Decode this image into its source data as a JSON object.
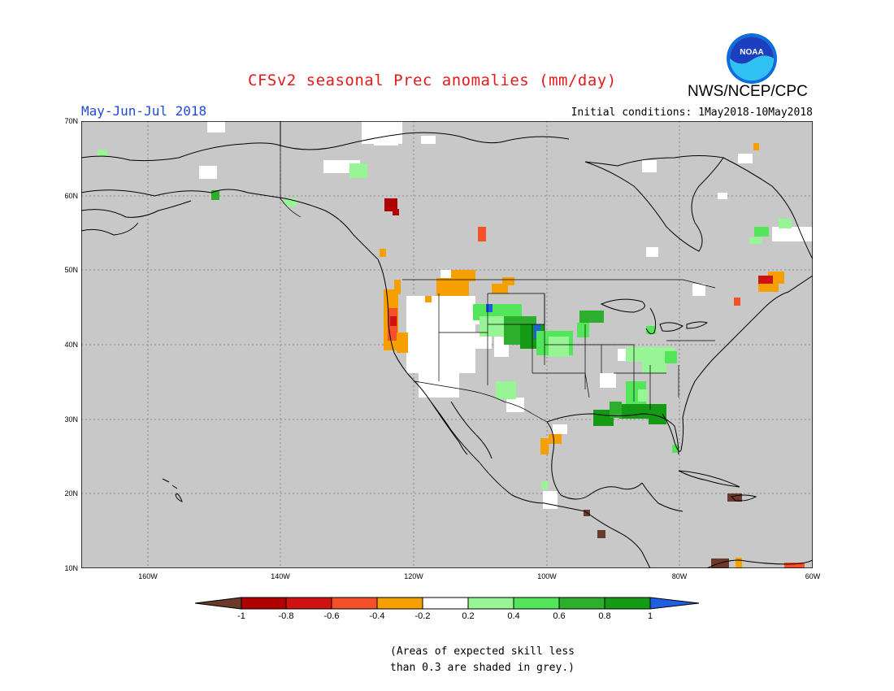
{
  "header": {
    "title": "CFSv2 seasonal Prec anomalies (mm/day)",
    "period": "May-Jun-Jul 2018",
    "initial_conditions": "Initial conditions: 1May2018-10May2018",
    "agency": "NWS/NCEP/CPC",
    "logo_text": "NOAA"
  },
  "map": {
    "region": "North America",
    "lon_range": [
      -170,
      -60
    ],
    "lat_range": [
      10,
      70
    ],
    "lat_labels": [
      "70N",
      "60N",
      "50N",
      "40N",
      "30N",
      "20N",
      "10N"
    ],
    "lon_labels": [
      "160W",
      "140W",
      "120W",
      "100W",
      "80W",
      "60W"
    ],
    "background_color": "#c8c8c8",
    "anomaly_cells": [
      {
        "lon": -124,
        "lat": 41,
        "value": -0.6
      },
      {
        "lon": -123.5,
        "lat": 42,
        "value": -0.6
      },
      {
        "lon": -124,
        "lat": 44,
        "value": -0.4
      },
      {
        "lon": -123,
        "lat": 40,
        "value": -0.4
      },
      {
        "lon": -113,
        "lat": 48,
        "value": -0.4
      },
      {
        "lon": -110,
        "lat": 48,
        "value": -0.4
      },
      {
        "lon": -109.5,
        "lat": 54.5,
        "value": -0.6
      },
      {
        "lon": -122,
        "lat": 59.5,
        "value": -0.8
      },
      {
        "lon": -105,
        "lat": 44,
        "value": 0.6
      },
      {
        "lon": -103,
        "lat": 43,
        "value": 0.6
      },
      {
        "lon": -102,
        "lat": 41,
        "value": 0.8
      },
      {
        "lon": -101,
        "lat": 41.5,
        "value": 1.0
      },
      {
        "lon": -98,
        "lat": 40,
        "value": 0.4
      },
      {
        "lon": -95,
        "lat": 43,
        "value": 0.8
      },
      {
        "lon": -88,
        "lat": 38,
        "value": 0.4
      },
      {
        "lon": -87,
        "lat": 34,
        "value": 0.6
      },
      {
        "lon": -88,
        "lat": 31,
        "value": 0.8
      },
      {
        "lon": -85,
        "lat": 31,
        "value": 0.8
      },
      {
        "lon": -91,
        "lat": 30,
        "value": 0.8
      },
      {
        "lon": -113,
        "lat": 38,
        "value": -0.2
      },
      {
        "lon": -116,
        "lat": 40,
        "value": -0.2
      },
      {
        "lon": -110,
        "lat": 42,
        "value": -0.2
      },
      {
        "lon": -100,
        "lat": 25,
        "value": -0.4
      },
      {
        "lon": -91,
        "lat": 15,
        "value": -1.0
      },
      {
        "lon": -72,
        "lat": 19,
        "value": -1.0
      },
      {
        "lon": -73,
        "lat": 11,
        "value": -1.0
      },
      {
        "lon": -67,
        "lat": 46,
        "value": -0.4
      },
      {
        "lon": -68,
        "lat": 48.5,
        "value": -0.6
      },
      {
        "lon": -67,
        "lat": 55,
        "value": 0.6
      }
    ]
  },
  "colorbar": {
    "labels": [
      "-1",
      "-0.8",
      "-0.6",
      "-0.4",
      "-0.2",
      "0.2",
      "0.4",
      "0.6",
      "0.8",
      "1"
    ],
    "colors": [
      "#6b3a2a",
      "#b00000",
      "#d11212",
      "#f5502a",
      "#f59f00",
      "#ffffff",
      "#98f595",
      "#53e65a",
      "#2daf2d",
      "#159a15",
      "#1e5ee0"
    ]
  },
  "note": {
    "line1": "(Areas of expected skill less",
    "line2": "than 0.3 are shaded in grey.)"
  }
}
